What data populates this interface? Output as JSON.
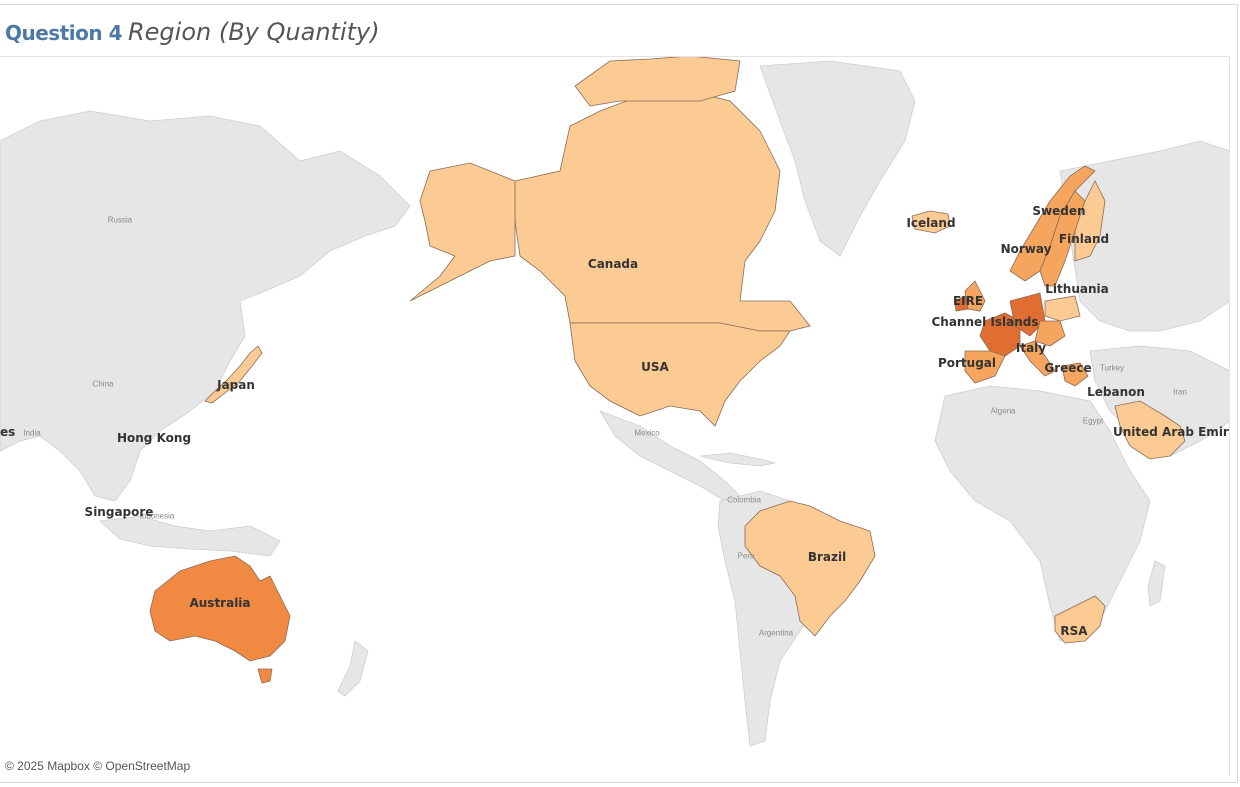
{
  "title": {
    "bold": "Question 4",
    "italic": "Region (By Quantity)"
  },
  "attribution": "© 2025 Mapbox © OpenStreetMap",
  "colors": {
    "background": "#ffffff",
    "land_base": "#e6e6e6",
    "scale_low": "#fbcb93",
    "scale_mid": "#f5a55d",
    "scale_high": "#f08a42",
    "scale_top": "#e06e32"
  },
  "regions": [
    {
      "name": "Canada"
    },
    {
      "name": "USA"
    },
    {
      "name": "Brazil"
    },
    {
      "name": "Australia"
    },
    {
      "name": "Japan"
    },
    {
      "name": "Hong Kong"
    },
    {
      "name": "Singapore"
    },
    {
      "name": "Iceland"
    },
    {
      "name": "Sweden"
    },
    {
      "name": "Norway"
    },
    {
      "name": "Finland"
    },
    {
      "name": "Lithuania"
    },
    {
      "name": "EIRE"
    },
    {
      "name": "Channel Islands"
    },
    {
      "name": "Italy"
    },
    {
      "name": "Portugal"
    },
    {
      "name": "Greece"
    },
    {
      "name": "Lebanon"
    },
    {
      "name": "United Arab Emirates"
    },
    {
      "name": "RSA"
    }
  ],
  "base_labels": [
    "Russia",
    "China",
    "India",
    "Mexico",
    "Colombia",
    "Peru",
    "Argentina",
    "Algeria",
    "Egypt",
    "Turkey",
    "Iran",
    "Indonesia"
  ],
  "edge_label": "es"
}
